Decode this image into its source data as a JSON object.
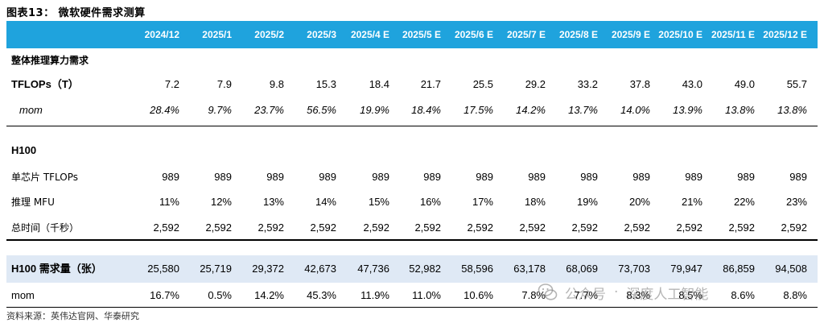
{
  "title": "图表13：  微软硬件需求测算",
  "columns": [
    "2024/12",
    "2025/1",
    "2025/2",
    "2025/3",
    "2025/4 E",
    "2025/5 E",
    "2025/6 E",
    "2025/7 E",
    "2025/8 E",
    "2025/9 E",
    "2025/10 E",
    "2025/11 E",
    "2025/12 E"
  ],
  "rows": [
    {
      "label": "整体推理算力需求",
      "values": []
    },
    {
      "label": "TFLOPs（T）",
      "values": [
        "7.2",
        "7.9",
        "9.8",
        "15.3",
        "18.4",
        "21.7",
        "25.5",
        "29.2",
        "33.2",
        "37.8",
        "43.0",
        "49.0",
        "55.7"
      ]
    },
    {
      "label": "mom",
      "values": [
        "28.4%",
        "9.7%",
        "23.7%",
        "56.5%",
        "19.9%",
        "18.4%",
        "17.5%",
        "14.2%",
        "13.7%",
        "14.0%",
        "13.9%",
        "13.8%",
        "13.8%"
      ]
    },
    {
      "label": "H100",
      "values": []
    },
    {
      "label": "单芯片 TFLOPs",
      "values": [
        "989",
        "989",
        "989",
        "989",
        "989",
        "989",
        "989",
        "989",
        "989",
        "989",
        "989",
        "989",
        "989"
      ]
    },
    {
      "label": "推理 MFU",
      "values": [
        "11%",
        "12%",
        "13%",
        "14%",
        "15%",
        "16%",
        "17%",
        "18%",
        "19%",
        "20%",
        "21%",
        "22%",
        "23%"
      ]
    },
    {
      "label": "总时间（千秒）",
      "values": [
        "2,592",
        "2,592",
        "2,592",
        "2,592",
        "2,592",
        "2,592",
        "2,592",
        "2,592",
        "2,592",
        "2,592",
        "2,592",
        "2,592",
        "2,592"
      ]
    },
    {
      "label": "H100 需求量（张）",
      "values": [
        "25,580",
        "25,719",
        "29,372",
        "42,673",
        "47,736",
        "52,982",
        "58,596",
        "63,178",
        "68,069",
        "73,703",
        "79,947",
        "86,859",
        "94,508"
      ]
    },
    {
      "label": "mom",
      "values": [
        "16.7%",
        "0.5%",
        "14.2%",
        "45.3%",
        "11.9%",
        "11.0%",
        "10.6%",
        "7.8%",
        "7.7%",
        "8.3%",
        "8.5%",
        "8.6%",
        "8.8%"
      ]
    }
  ],
  "source": "资料来源：英伟达官网、华泰研究",
  "watermark": {
    "left": "公众号",
    "right": "深度人工智能",
    "icon": "wechat-icon"
  },
  "colors": {
    "header_bg": "#1fa3dd",
    "shaded_row": "#dfe9f5"
  }
}
